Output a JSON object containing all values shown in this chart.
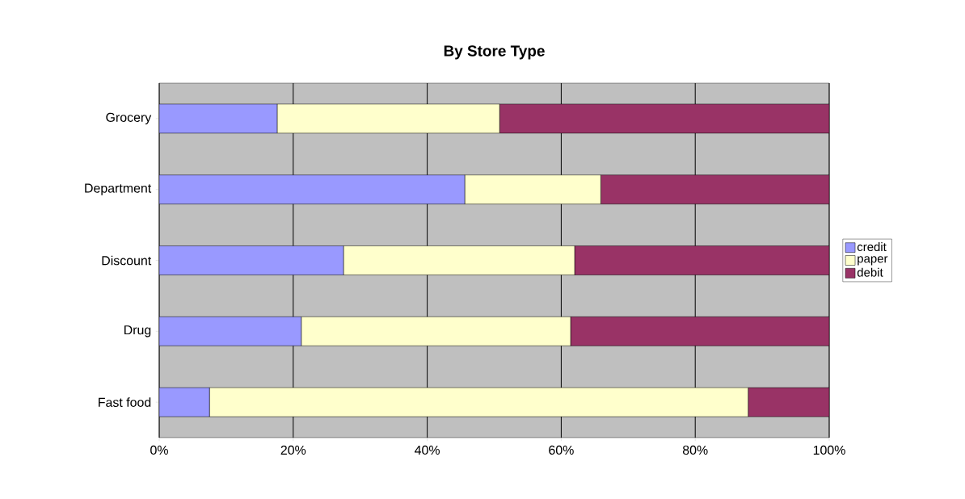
{
  "chart_data": {
    "type": "bar",
    "orientation": "horizontal",
    "stacked": true,
    "title": "By Store Type",
    "categories": [
      "Grocery",
      "Department",
      "Discount",
      "Drug",
      "Fast food"
    ],
    "series": [
      {
        "name": "credit",
        "color": "#9999ff",
        "values": [
          17.6,
          45.6,
          27.5,
          21.2,
          7.5
        ]
      },
      {
        "name": "paper",
        "color": "#ffffcc",
        "values": [
          33.2,
          20.3,
          34.5,
          40.2,
          80.4
        ]
      },
      {
        "name": "debit",
        "color": "#993366",
        "values": [
          49.2,
          34.1,
          38.0,
          38.6,
          12.1
        ]
      }
    ],
    "xlim": [
      0,
      100
    ],
    "xticks": [
      {
        "value": 0,
        "label": "0%"
      },
      {
        "value": 20,
        "label": "20%"
      },
      {
        "value": 40,
        "label": "40%"
      },
      {
        "value": 60,
        "label": "60%"
      },
      {
        "value": 80,
        "label": "80%"
      },
      {
        "value": 100,
        "label": "100%"
      }
    ],
    "grid": "x",
    "legend": "right"
  }
}
